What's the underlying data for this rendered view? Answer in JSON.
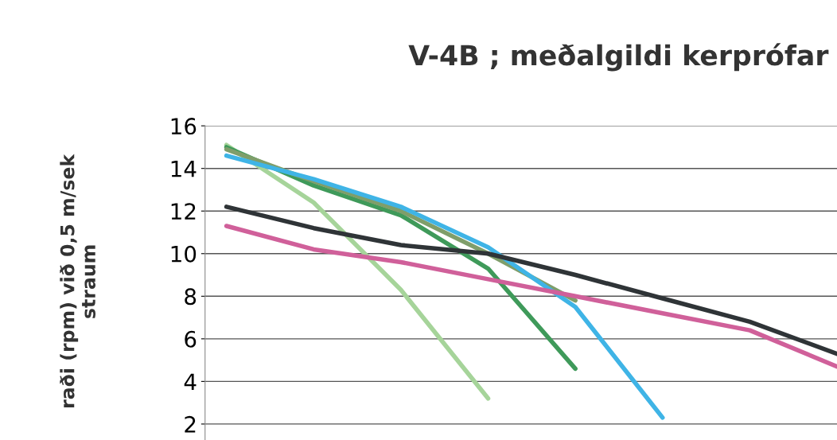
{
  "chart_data": {
    "type": "line",
    "title": "V-4B ; meðalgildi kerprófar",
    "ylabel": "raði (rpm) við 0,5 m/sek\nstraum",
    "categories": [
      null,
      null,
      null,
      null,
      null,
      null,
      null,
      null
    ],
    "series": [
      {
        "color": "#a6d49a",
        "values": [
          15.1,
          12.4,
          8.3,
          3.2,
          null,
          null,
          null,
          null
        ]
      },
      {
        "color": "#3f9a5a",
        "values": [
          15.0,
          13.2,
          11.8,
          9.3,
          4.6,
          null,
          null,
          null
        ]
      },
      {
        "color": "#7f9e6a",
        "values": [
          14.9,
          13.4,
          12.0,
          10.0,
          7.8,
          null,
          null,
          null
        ]
      },
      {
        "color": "#3fb4e6",
        "values": [
          14.6,
          13.5,
          12.2,
          10.3,
          7.5,
          2.3,
          null,
          null
        ]
      },
      {
        "color": "#2f3437",
        "values": [
          12.2,
          11.2,
          10.4,
          10.0,
          9.0,
          7.9,
          6.8,
          5.3
        ]
      },
      {
        "color": "#d0609a",
        "values": [
          11.3,
          10.2,
          9.6,
          8.8,
          8.0,
          7.2,
          6.4,
          4.7
        ]
      }
    ],
    "ylim": [
      1.25,
      16
    ],
    "yticks": [
      2,
      4,
      6,
      8,
      10,
      12,
      14,
      16
    ],
    "grid": "y",
    "legend": false,
    "marker": "none",
    "line_style": "solid"
  }
}
